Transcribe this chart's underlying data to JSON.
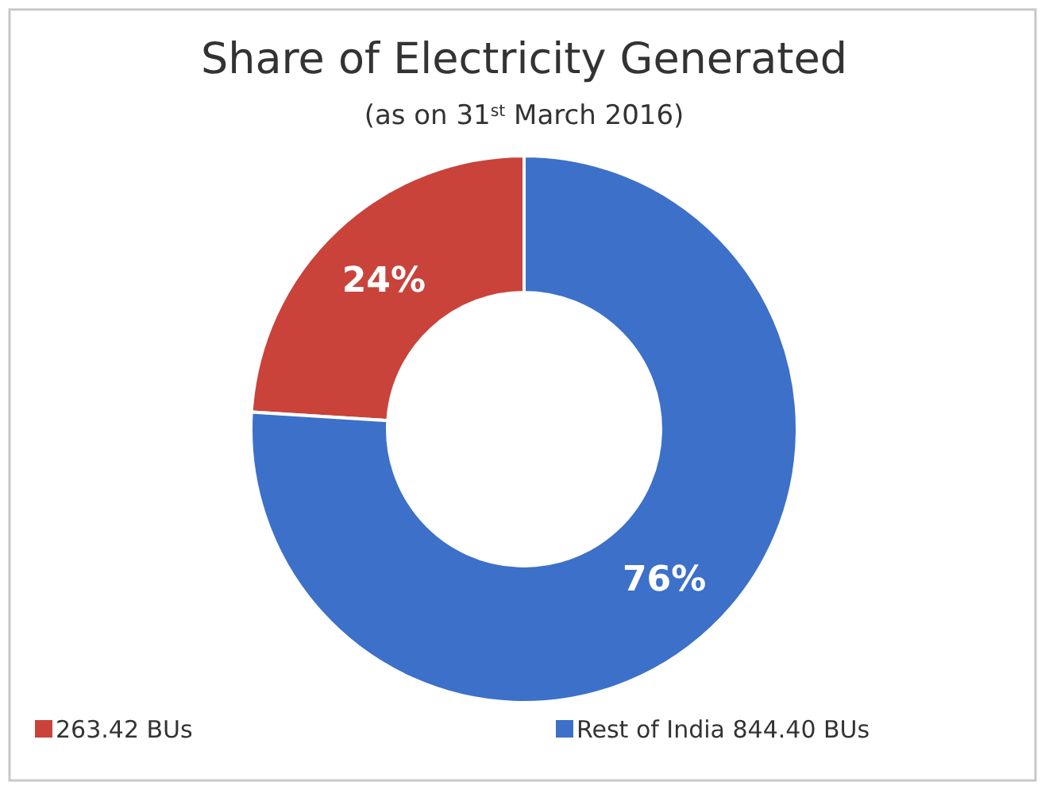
{
  "chart_data": {
    "type": "donut",
    "title": "Share of Electricity Generated",
    "subtitle": "(as on 31$^{st}$ March 2016)",
    "categories": [
      "263.42 BUs",
      "Rest of India 844.40 BUs"
    ],
    "values": [
      24,
      76
    ],
    "colors": [
      "#c9433b",
      "#3c70c9"
    ],
    "value_labels": [
      "24%",
      "76%"
    ],
    "legend": "bottom"
  }
}
